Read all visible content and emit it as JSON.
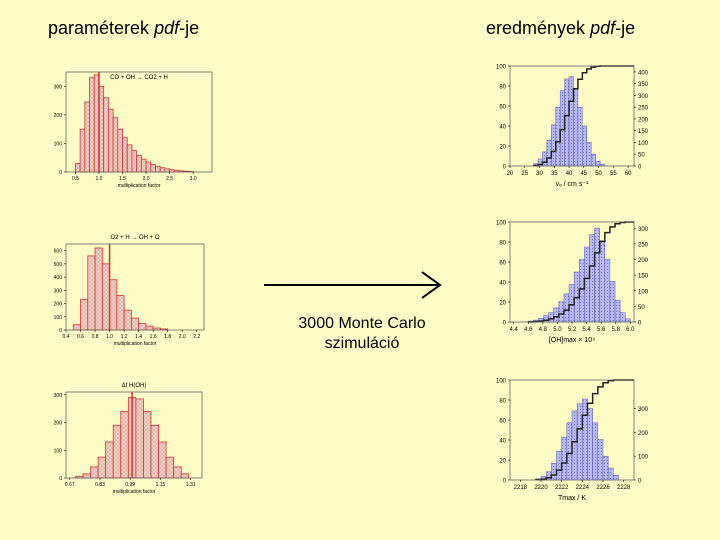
{
  "headings": {
    "left_plain": "paraméterek ",
    "left_italic": "pdf",
    "left_suffix": "-je",
    "right_plain": "eredmények ",
    "right_italic": "pdf",
    "right_suffix": "-je"
  },
  "arrow_caption": {
    "line1": "3000 Monte Carlo",
    "line2": "szimuláció"
  },
  "colors": {
    "background": "#fdfcc6",
    "left_hist_fill": "#f3d9c8",
    "left_hist_line": "#cc3333",
    "right_hist_fill": "#b9b9f2",
    "right_hist_dots": "#5555aa",
    "cdf_line": "#222222",
    "frame": "#666666"
  },
  "chart_data": [
    {
      "id": "left1",
      "type": "bar",
      "title": "CO + OH → CO2 + H",
      "xlabel": "multiplication factor",
      "ylabel": "",
      "xlim": [
        0.3,
        3.4
      ],
      "ylim": [
        0,
        350
      ],
      "xticks": [
        0.5,
        1.0,
        1.5,
        2.0,
        2.5,
        3.0
      ],
      "xtick_labels": [
        "0.5",
        "1.0",
        "1.5",
        "2.0",
        "2.5",
        "3.0"
      ],
      "yticks": [
        0,
        100,
        200,
        300
      ],
      "ytick_labels": [
        "0",
        "100",
        "200",
        "300"
      ],
      "bin_start": 0.5,
      "bin_width": 0.1,
      "values": [
        30,
        150,
        245,
        330,
        340,
        300,
        260,
        220,
        190,
        150,
        120,
        95,
        75,
        58,
        45,
        35,
        26,
        20,
        15,
        11,
        8,
        6,
        4,
        3,
        2
      ],
      "marker_x": 1.0
    },
    {
      "id": "left2",
      "type": "bar",
      "title": "O2 + H → OH + O",
      "xlabel": "multiplication factor",
      "ylabel": "",
      "xlim": [
        0.4,
        2.3
      ],
      "ylim": [
        0,
        650
      ],
      "xticks": [
        0.4,
        0.6,
        0.8,
        1.0,
        1.2,
        1.4,
        1.6,
        1.8,
        2.0,
        2.2
      ],
      "xtick_labels": [
        "0.4",
        "0.6",
        "0.8",
        "1.0",
        "1.2",
        "1.4",
        "1.6",
        "1.8",
        "2.0",
        "2.2"
      ],
      "yticks": [
        0,
        100,
        200,
        300,
        400,
        500,
        600
      ],
      "ytick_labels": [
        "0",
        "100",
        "200",
        "300",
        "400",
        "500",
        "600"
      ],
      "bin_start": 0.5,
      "bin_width": 0.1,
      "values": [
        40,
        230,
        560,
        620,
        500,
        380,
        260,
        150,
        90,
        50,
        30,
        15,
        8
      ],
      "marker_x": 1.0
    },
    {
      "id": "left3",
      "type": "bar",
      "title": "Δf H(OH)",
      "xlabel": "multiplication factor",
      "ylabel": "",
      "xlim": [
        0.65,
        1.37
      ],
      "ylim": [
        0,
        310
      ],
      "xticks": [
        0.67,
        0.83,
        0.99,
        1.15,
        1.31
      ],
      "xtick_labels": [
        "0.67",
        "0.83",
        "0.99",
        "1.15",
        "1.31"
      ],
      "yticks": [
        0,
        100,
        200,
        300
      ],
      "ytick_labels": [
        "0",
        "100",
        "200",
        "300"
      ],
      "bin_start": 0.7,
      "bin_width": 0.04,
      "values": [
        5,
        15,
        40,
        75,
        130,
        190,
        240,
        290,
        285,
        240,
        190,
        130,
        75,
        40,
        15
      ],
      "marker_x": 1.0
    },
    {
      "id": "right1",
      "type": "bar",
      "xlabel": "vₑ / cm s⁻¹",
      "ylabel": "",
      "xlim": [
        20,
        62
      ],
      "ylim": [
        0,
        100
      ],
      "y2lim": [
        0,
        425
      ],
      "xticks": [
        20,
        25,
        30,
        35,
        40,
        45,
        50,
        55,
        60
      ],
      "xtick_labels": [
        "20",
        "25",
        "30",
        "35",
        "40",
        "45",
        "50",
        "55",
        "60"
      ],
      "yticks": [
        0,
        20,
        40,
        60,
        80,
        100
      ],
      "ytick_labels": [
        "0",
        "20",
        "40",
        "60",
        "80",
        "100"
      ],
      "y2ticks": [
        0,
        50,
        100,
        150,
        200,
        250,
        300,
        350,
        400
      ],
      "y2tick_labels": [
        "0",
        "50",
        "100",
        "150",
        "200",
        "250",
        "300",
        "350",
        "400"
      ],
      "bin_start": 28,
      "bin_width": 1.5,
      "values": [
        10,
        30,
        60,
        110,
        175,
        250,
        320,
        370,
        380,
        330,
        250,
        170,
        100,
        50,
        20,
        8
      ],
      "cdf": true
    },
    {
      "id": "right2",
      "type": "bar",
      "xlabel": "[OH]max × 10⁹",
      "ylabel": "",
      "xlim": [
        4.35,
        6.05
      ],
      "ylim": [
        0,
        100
      ],
      "y2lim": [
        0,
        320
      ],
      "xticks": [
        4.4,
        4.6,
        4.8,
        5.0,
        5.2,
        5.4,
        5.6,
        5.8,
        6.0
      ],
      "xtick_labels": [
        "4.4",
        "4.6",
        "4.8",
        "5.0",
        "5.2",
        "5.4",
        "5.6",
        "5.8",
        "6.0"
      ],
      "yticks": [
        0,
        20,
        40,
        60,
        80,
        100
      ],
      "ytick_labels": [
        "0",
        "20",
        "40",
        "60",
        "80",
        "100"
      ],
      "y2ticks": [
        0,
        50,
        100,
        150,
        200,
        250,
        300
      ],
      "y2tick_labels": [
        "0",
        "50",
        "100",
        "150",
        "200",
        "250",
        "300"
      ],
      "bin_start": 4.6,
      "bin_width": 0.07,
      "values": [
        3,
        6,
        12,
        20,
        30,
        45,
        65,
        90,
        120,
        160,
        200,
        240,
        280,
        300,
        260,
        200,
        130,
        70,
        30,
        10
      ],
      "cdf": true
    },
    {
      "id": "right3",
      "type": "bar",
      "xlabel": "Tmax / K",
      "ylabel": "",
      "xlim": [
        2217,
        2229
      ],
      "ylim": [
        0,
        100
      ],
      "y2lim": [
        0,
        420
      ],
      "xticks": [
        2218,
        2220,
        2222,
        2224,
        2226,
        2228
      ],
      "xtick_labels": [
        "2218",
        "2220",
        "2222",
        "2224",
        "2226",
        "2228"
      ],
      "yticks": [
        0,
        20,
        40,
        60,
        80,
        100
      ],
      "ytick_labels": [
        "0",
        "20",
        "40",
        "60",
        "80",
        "100"
      ],
      "y2ticks": [
        0,
        100,
        200,
        300
      ],
      "y2tick_labels": [
        "0",
        "100",
        "200",
        "300"
      ],
      "bin_start": 2219.5,
      "bin_width": 0.5,
      "values": [
        5,
        15,
        35,
        70,
        120,
        180,
        240,
        290,
        320,
        340,
        300,
        240,
        170,
        100,
        50,
        20
      ],
      "cdf": true
    }
  ]
}
